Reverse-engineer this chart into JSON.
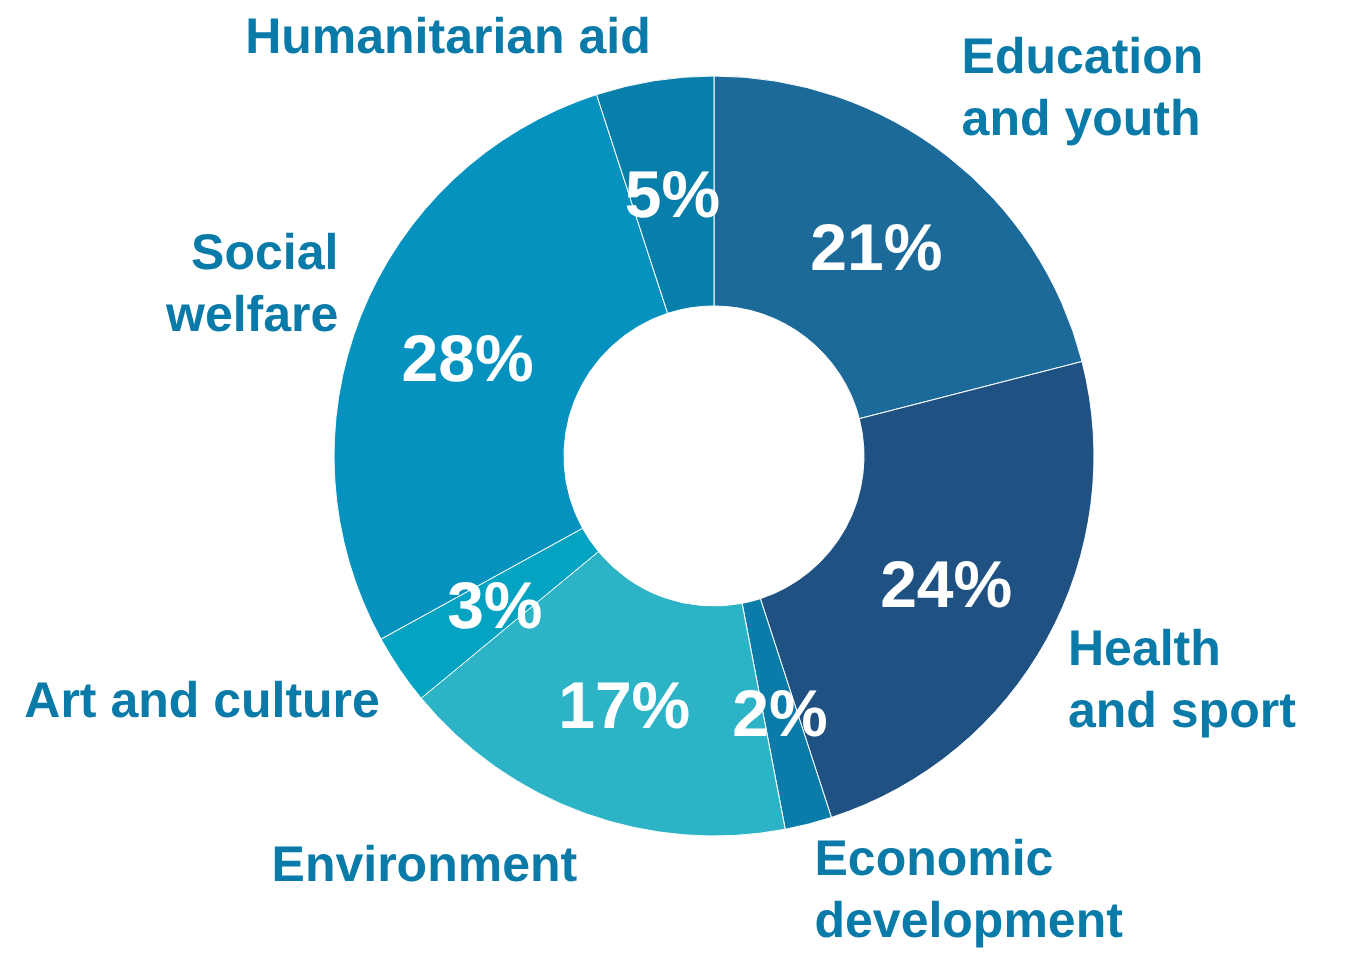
{
  "chart_data": {
    "type": "donut",
    "categories": [
      "Education and youth",
      "Health and sport",
      "Economic development",
      "Environment",
      "Art and culture",
      "Social welfare",
      "Humanitarian aid"
    ],
    "values": [
      21,
      24,
      2,
      17,
      3,
      28,
      5
    ],
    "colors": [
      "#1b6a9a",
      "#1f5282",
      "#0b7ba9",
      "#2cb3c6",
      "#05a3c2",
      "#0592be",
      "#087eaa"
    ],
    "value_labels": [
      "21%",
      "24%",
      "2%",
      "17%",
      "3%",
      "28%",
      "5%"
    ]
  }
}
